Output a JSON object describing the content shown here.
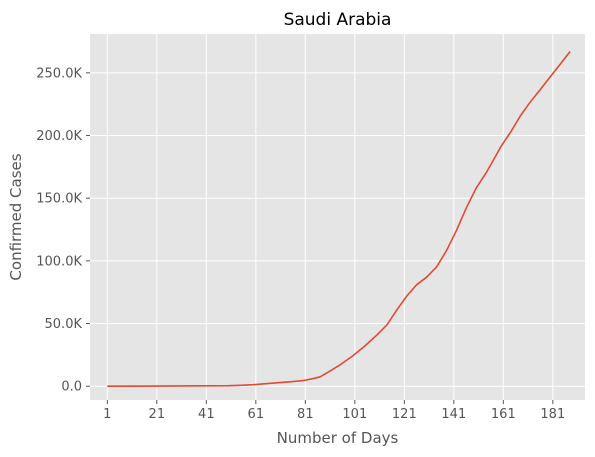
{
  "chart_data": {
    "type": "line",
    "title": "Saudi Arabia",
    "xlabel": "Number of Days",
    "ylabel": "Confirmed Cases",
    "xlim": [
      -6,
      194
    ],
    "ylim": [
      -11000,
      281000
    ],
    "x_ticks": [
      1,
      21,
      41,
      61,
      81,
      101,
      121,
      141,
      161,
      181
    ],
    "y_ticks": [
      {
        "value": 0,
        "label": "0.0"
      },
      {
        "value": 50000,
        "label": "50.0K"
      },
      {
        "value": 100000,
        "label": "100.0K"
      },
      {
        "value": 150000,
        "label": "150.0K"
      },
      {
        "value": 200000,
        "label": "200.0K"
      },
      {
        "value": 250000,
        "label": "250.0K"
      }
    ],
    "grid": true,
    "series": [
      {
        "color": "#E24A33",
        "x": [
          1,
          20,
          40,
          50,
          55,
          60,
          65,
          70,
          75,
          80,
          84,
          87,
          90,
          95,
          100,
          105,
          110,
          114,
          118,
          122,
          126,
          130,
          134,
          138,
          142,
          146,
          150,
          154,
          158,
          160,
          164,
          168,
          172,
          176,
          180,
          184,
          188
        ],
        "y": [
          1,
          50,
          300,
          400,
          700,
          1200,
          2000,
          2800,
          3500,
          4500,
          6000,
          7500,
          11000,
          17000,
          24000,
          32000,
          41000,
          49000,
          61000,
          72000,
          81000,
          87000,
          95000,
          108000,
          124000,
          142000,
          158000,
          170000,
          184000,
          191000,
          203000,
          216000,
          227000,
          237000,
          247000,
          257000,
          267000
        ]
      }
    ]
  }
}
